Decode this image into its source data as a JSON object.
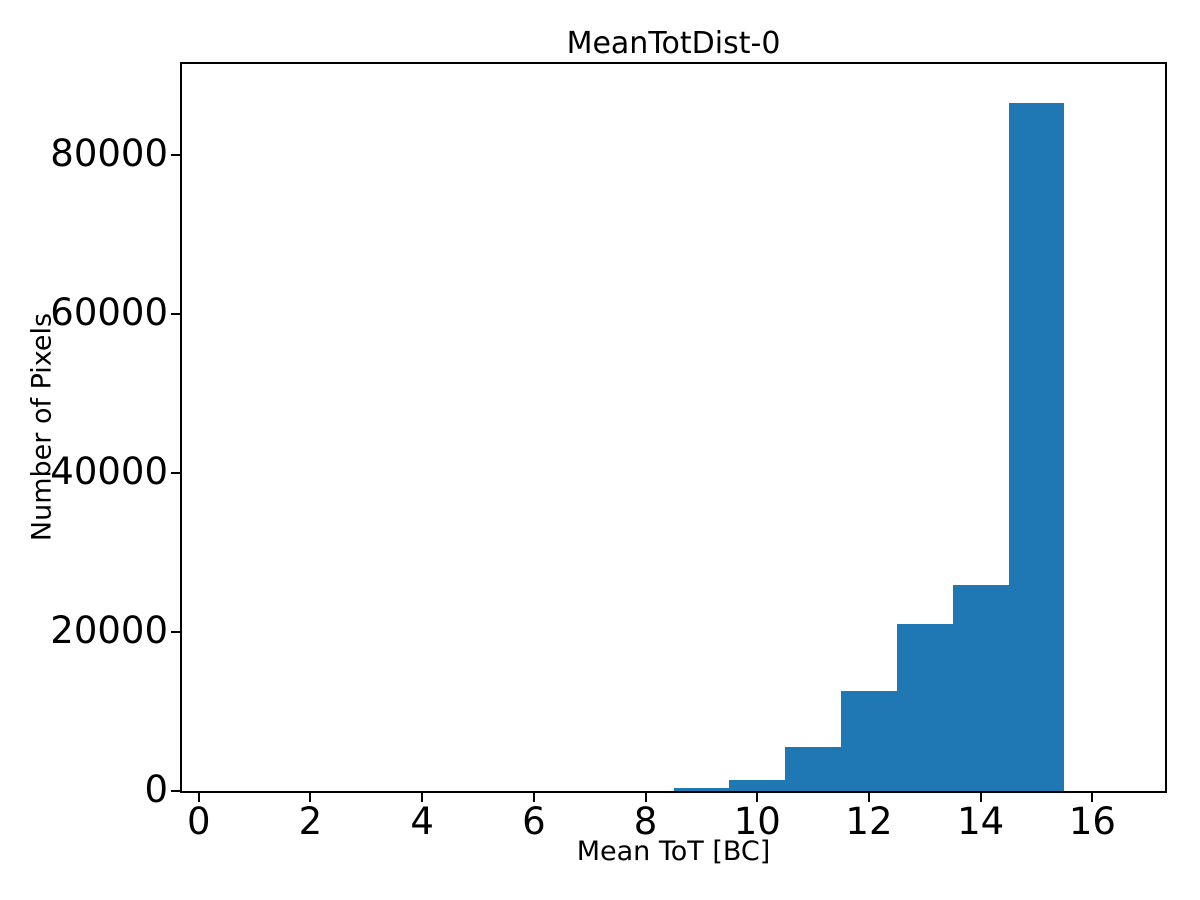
{
  "figure": {
    "background_color": "#ffffff",
    "text_color": "#000000"
  },
  "chart_data": {
    "type": "bar",
    "subtype": "histogram",
    "title": "MeanTotDist-0",
    "xlabel": "Mean ToT [BC]",
    "ylabel": "Number of Pixels",
    "bin_edges": [
      8.5,
      9.5,
      10.5,
      11.5,
      12.5,
      13.5,
      14.5,
      15.5
    ],
    "values": [
      400,
      1400,
      5500,
      12600,
      21000,
      25900,
      86600
    ],
    "xticks": [
      0,
      2,
      4,
      6,
      8,
      10,
      12,
      14,
      16
    ],
    "yticks": [
      0,
      20000,
      40000,
      60000,
      80000
    ],
    "xlim": [
      -0.3,
      17.3
    ],
    "ylim": [
      0,
      91500
    ],
    "bar_color": "#1f77b4",
    "spine_color": "#000000",
    "grid": false,
    "legend": null
  }
}
